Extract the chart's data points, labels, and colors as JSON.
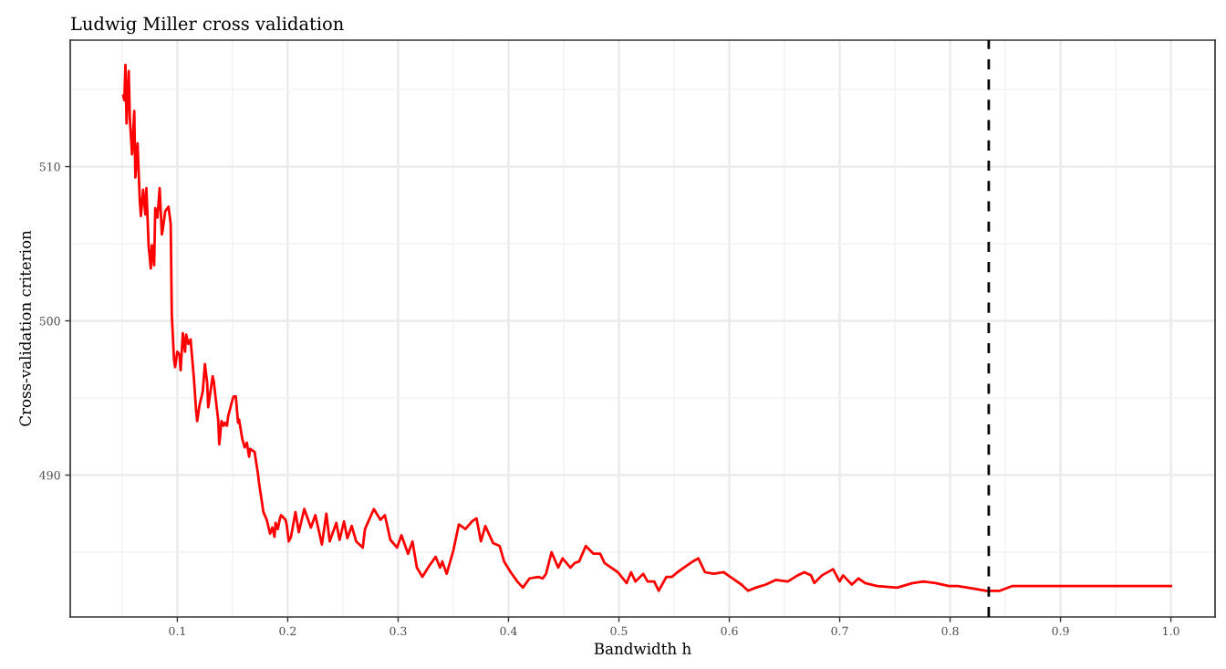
{
  "chart_data": {
    "type": "line",
    "title": "Ludwig Miller cross validation",
    "xlabel": "Bandwidth h",
    "ylabel": "Cross-validation criterion",
    "xlim": [
      0.003,
      1.04
    ],
    "ylim": [
      480.8,
      518.2
    ],
    "xticks": [
      {
        "value": 0.1,
        "label": "0.1"
      },
      {
        "value": 0.2,
        "label": "0.2"
      },
      {
        "value": 0.3,
        "label": "0.3"
      },
      {
        "value": 0.4,
        "label": "0.4"
      },
      {
        "value": 0.5,
        "label": "0.5"
      },
      {
        "value": 0.6,
        "label": "0.6"
      },
      {
        "value": 0.7,
        "label": "0.7"
      },
      {
        "value": 0.8,
        "label": "0.8"
      },
      {
        "value": 0.9,
        "label": "0.9"
      },
      {
        "value": 1.0,
        "label": "1.0"
      }
    ],
    "yticks": [
      490,
      500,
      510
    ],
    "grid": true,
    "line_style": "solid",
    "marker": "none",
    "ref_lines": [
      {
        "axis": "x",
        "value": 0.835,
        "color": "#000000",
        "line_style": "dashed"
      }
    ],
    "series": [
      {
        "color": "#ff0000",
        "x": [
          0.051,
          0.052,
          0.053,
          0.054,
          0.056,
          0.057,
          0.059,
          0.061,
          0.062,
          0.064,
          0.066,
          0.067,
          0.069,
          0.071,
          0.072,
          0.074,
          0.076,
          0.077,
          0.079,
          0.08,
          0.082,
          0.084,
          0.086,
          0.087,
          0.089,
          0.092,
          0.094,
          0.095,
          0.097,
          0.098,
          0.1,
          0.102,
          0.103,
          0.105,
          0.107,
          0.108,
          0.11,
          0.112,
          0.115,
          0.117,
          0.118,
          0.12,
          0.123,
          0.125,
          0.127,
          0.128,
          0.13,
          0.132,
          0.133,
          0.135,
          0.137,
          0.138,
          0.14,
          0.142,
          0.143,
          0.145,
          0.146,
          0.15,
          0.151,
          0.153,
          0.155,
          0.156,
          0.158,
          0.159,
          0.161,
          0.163,
          0.165,
          0.166,
          0.17,
          0.173,
          0.174,
          0.178,
          0.181,
          0.184,
          0.186,
          0.188,
          0.189,
          0.191,
          0.193,
          0.194,
          0.198,
          0.199,
          0.201,
          0.203,
          0.207,
          0.21,
          0.215,
          0.221,
          0.225,
          0.231,
          0.235,
          0.238,
          0.244,
          0.247,
          0.251,
          0.254,
          0.258,
          0.262,
          0.268,
          0.27,
          0.278,
          0.284,
          0.288,
          0.293,
          0.299,
          0.303,
          0.309,
          0.313,
          0.317,
          0.322,
          0.328,
          0.334,
          0.338,
          0.34,
          0.344,
          0.35,
          0.355,
          0.361,
          0.367,
          0.371,
          0.375,
          0.379,
          0.386,
          0.392,
          0.396,
          0.402,
          0.408,
          0.413,
          0.419,
          0.427,
          0.431,
          0.434,
          0.439,
          0.445,
          0.449,
          0.456,
          0.46,
          0.464,
          0.47,
          0.477,
          0.483,
          0.487,
          0.493,
          0.499,
          0.507,
          0.511,
          0.515,
          0.522,
          0.526,
          0.532,
          0.536,
          0.543,
          0.548,
          0.553,
          0.561,
          0.567,
          0.572,
          0.578,
          0.586,
          0.595,
          0.601,
          0.611,
          0.617,
          0.624,
          0.633,
          0.642,
          0.653,
          0.662,
          0.668,
          0.674,
          0.677,
          0.684,
          0.694,
          0.7,
          0.703,
          0.711,
          0.717,
          0.723,
          0.734,
          0.752,
          0.766,
          0.776,
          0.787,
          0.799,
          0.807,
          0.816,
          0.833,
          0.845,
          0.856,
          0.874,
          1.0
        ],
        "values": [
          514.6,
          514.3,
          516.6,
          512.8,
          516.2,
          513.1,
          510.8,
          513.6,
          509.3,
          511.5,
          507.8,
          506.8,
          508.5,
          506.9,
          508.6,
          504.9,
          503.4,
          504.9,
          503.6,
          507.3,
          506.7,
          508.6,
          505.6,
          506.0,
          507.1,
          507.4,
          506.3,
          500.4,
          497.5,
          497.0,
          498.0,
          497.8,
          496.8,
          499.2,
          498.0,
          499.1,
          498.5,
          498.8,
          496.3,
          494.2,
          493.5,
          494.5,
          495.4,
          497.2,
          496.0,
          494.4,
          495.4,
          496.4,
          496.1,
          494.8,
          493.6,
          492.0,
          493.5,
          493.2,
          493.4,
          493.2,
          493.8,
          494.9,
          495.1,
          495.1,
          493.4,
          493.6,
          492.7,
          492.3,
          491.8,
          492.1,
          491.2,
          491.7,
          491.5,
          490.1,
          489.5,
          487.6,
          487.1,
          486.2,
          486.6,
          486.0,
          486.9,
          486.5,
          487.2,
          487.4,
          487.1,
          486.8,
          485.7,
          486.0,
          487.6,
          486.3,
          487.8,
          486.6,
          487.4,
          485.5,
          487.5,
          485.7,
          486.9,
          485.8,
          487.0,
          485.9,
          486.7,
          485.7,
          485.3,
          486.5,
          487.8,
          487.1,
          487.4,
          485.8,
          485.3,
          486.1,
          484.9,
          485.7,
          484.0,
          483.4,
          484.1,
          484.7,
          484.0,
          484.4,
          483.6,
          485.1,
          486.8,
          486.5,
          487.0,
          487.2,
          485.7,
          486.7,
          485.6,
          485.4,
          484.4,
          483.7,
          483.1,
          482.7,
          483.3,
          483.4,
          483.3,
          483.6,
          485.0,
          484.0,
          484.6,
          484.0,
          484.3,
          484.4,
          485.4,
          484.9,
          484.9,
          484.3,
          484.0,
          483.7,
          483.0,
          483.7,
          483.1,
          483.6,
          483.1,
          483.1,
          482.5,
          483.4,
          483.4,
          483.7,
          484.1,
          484.4,
          484.6,
          483.7,
          483.6,
          483.7,
          483.4,
          482.9,
          482.5,
          482.7,
          482.9,
          483.2,
          483.1,
          483.5,
          483.7,
          483.5,
          483.0,
          483.5,
          483.9,
          483.1,
          483.5,
          482.9,
          483.3,
          483.0,
          482.8,
          482.7,
          483.0,
          483.1,
          483.0,
          482.8,
          482.8,
          482.7,
          482.5,
          482.5,
          482.8,
          482.8,
          482.8
        ]
      }
    ]
  }
}
